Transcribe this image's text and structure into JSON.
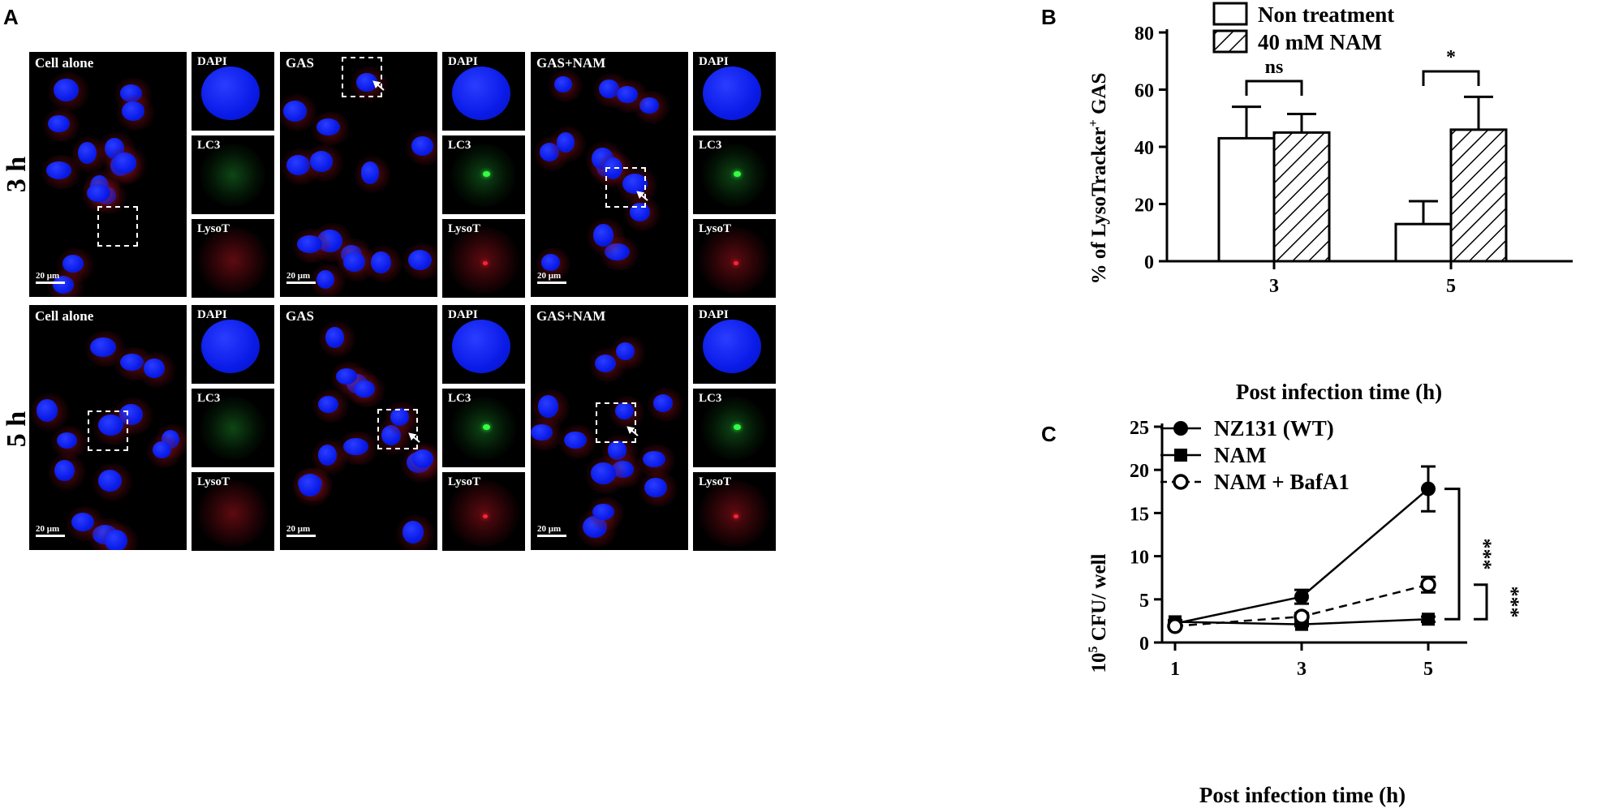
{
  "panel_a": {
    "letter": "A",
    "rows": [
      {
        "label": "3 h"
      },
      {
        "label": "5 h"
      }
    ],
    "conditions": [
      "Cell alone",
      "GAS",
      "GAS+NAM"
    ],
    "channels": [
      "DAPI",
      "LC3",
      "LysoT"
    ],
    "scale_bar": "20 μm"
  },
  "panel_b": {
    "letter": "B",
    "chart_data": {
      "type": "bar",
      "categories": [
        "3",
        "5"
      ],
      "series": [
        {
          "name": "Non treatment",
          "values": [
            43,
            13
          ],
          "errors": [
            11,
            8
          ],
          "pattern": "open"
        },
        {
          "name": "40 mM NAM",
          "values": [
            45,
            46
          ],
          "errors": [
            6.5,
            11.5
          ],
          "pattern": "hatched"
        }
      ],
      "xlabel": "Post infection time (h)",
      "ylabel_main": "% of LysoTracker",
      "ylabel_sup": "+",
      "ylabel_tail": " GAS",
      "ylim": [
        0,
        80
      ],
      "yticks": [
        "0",
        "20",
        "40",
        "60",
        "80"
      ],
      "significance": [
        "ns",
        "*"
      ],
      "legend": "top"
    }
  },
  "panel_c": {
    "letter": "C",
    "chart_data": {
      "type": "line",
      "x": [
        1,
        3,
        5
      ],
      "xticks": [
        "1",
        "3",
        "5"
      ],
      "series": [
        {
          "name": "NZ131 (WT)",
          "values": [
            2.2,
            5.3,
            17.8
          ],
          "errors": [
            0.3,
            0.8,
            2.6
          ],
          "marker": "filled-circle",
          "line": "solid"
        },
        {
          "name": "NAM",
          "values": [
            2.4,
            2.1,
            2.7
          ],
          "errors": [
            0.2,
            0.2,
            0.3
          ],
          "marker": "filled-square",
          "line": "solid"
        },
        {
          "name": "NAM + BafA1",
          "values": [
            1.9,
            3.0,
            6.7
          ],
          "errors": [
            0.2,
            0.4,
            0.9
          ],
          "marker": "open-circle",
          "line": "dashed"
        }
      ],
      "xlabel": "Post infection time (h)",
      "ylabel_sup": "5",
      "ylabel_base": "10",
      "ylabel_tail": " CFU/ well",
      "ylim": [
        0,
        25
      ],
      "yticks": [
        "0",
        "5",
        "10",
        "15",
        "20",
        "25"
      ],
      "significance": [
        "***",
        "***"
      ],
      "legend": "top-left"
    }
  }
}
